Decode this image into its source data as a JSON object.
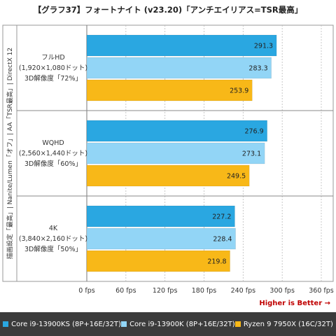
{
  "chart_data": {
    "type": "bar",
    "orientation": "horizontal",
    "title": "【グラフ37】フォートナイト (v23.20)「アンチエイリアス=TSR最高」",
    "side_label": "描画設定「最高」| Nanite/Lumen「オフ」| AA「TSR最高」| DirectX 12",
    "categories": [
      {
        "lines": [
          "フルHD",
          "(1,920×1,080ドット)",
          "3D解像度「72%」"
        ]
      },
      {
        "lines": [
          "WQHD",
          "(2,560×1,440ドット)",
          "3D解像度「60%」"
        ]
      },
      {
        "lines": [
          "4K",
          "(3,840×2,160ドット)",
          "3D解像度「50%」"
        ]
      }
    ],
    "series": [
      {
        "name": "Core i9-13900KS (8P+16E/32T)",
        "color": "#2aa7e1",
        "values": [
          291.3,
          276.9,
          227.2
        ],
        "labels": [
          "291.3",
          "276.9",
          "227.2"
        ]
      },
      {
        "name": "Core i9-13900K (8P+16E/32T)",
        "color": "#92d5f6",
        "values": [
          283.3,
          273.1,
          228.4
        ],
        "labels": [
          "283.3",
          "273.1",
          "228.4"
        ]
      },
      {
        "name": "Ryzen 9 7950X (16C/32T)",
        "color": "#f8b818",
        "values": [
          253.9,
          249.5,
          219.8
        ],
        "labels": [
          "253.9",
          "249.5",
          "219.8"
        ]
      }
    ],
    "xlim": [
      0,
      360
    ],
    "xticks": [
      0,
      60,
      120,
      180,
      240,
      300,
      360
    ],
    "xtick_labels": [
      "0 fps",
      "60 fps",
      "120 fps",
      "180 fps",
      "240 fps",
      "300 fps",
      "360 fps"
    ],
    "note": "Higher is Better →",
    "grid": true,
    "legend_position": "bottom"
  }
}
